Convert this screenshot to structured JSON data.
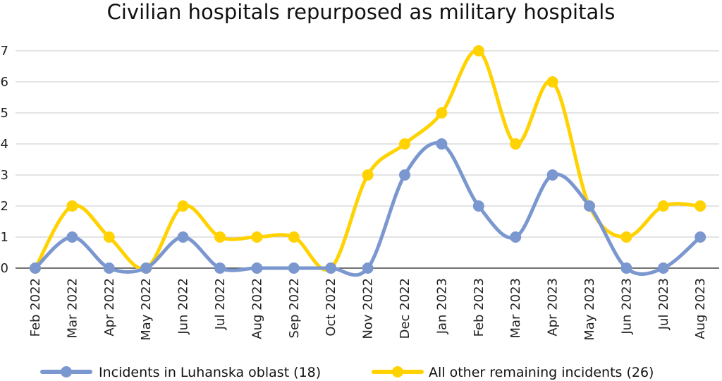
{
  "chart_data": {
    "type": "line",
    "title": "Civilian hospitals repurposed as military hospitals",
    "xlabel": "",
    "ylabel": "",
    "ylim": [
      0,
      7
    ],
    "yticks": [
      0,
      1,
      2,
      3,
      4,
      5,
      6,
      7
    ],
    "grid": true,
    "legend_position": "bottom",
    "categories": [
      "Feb 2022",
      "Mar 2022",
      "Apr 2022",
      "May 2022",
      "Jun 2022",
      "Jul 2022",
      "Aug 2022",
      "Sep 2022",
      "Oct 2022",
      "Nov 2022",
      "Dec 2022",
      "Jan 2023",
      "Feb 2023",
      "Mar 2023",
      "Apr 2023",
      "May 2023",
      "Jun 2023",
      "Jul 2023",
      "Aug 2023"
    ],
    "series": [
      {
        "name": "Incidents in Luhanska oblast (18)",
        "color": "#7b97cf",
        "values": [
          0,
          1,
          0,
          0,
          1,
          0,
          0,
          0,
          0,
          0,
          3,
          4,
          2,
          1,
          3,
          2,
          0,
          0,
          1
        ]
      },
      {
        "name": "All other remaining incidents (26)",
        "color": "#ffd200",
        "values": [
          0,
          2,
          1,
          0,
          2,
          1,
          1,
          1,
          0,
          3,
          4,
          5,
          7,
          4,
          6,
          2,
          1,
          2,
          2
        ]
      }
    ]
  }
}
